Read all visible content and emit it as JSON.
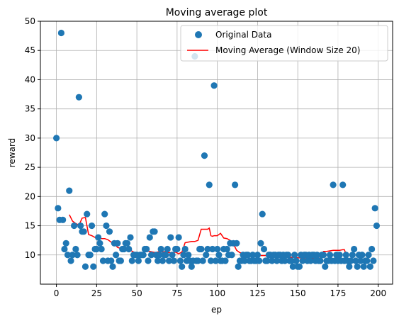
{
  "chart_data": {
    "type": "scatter",
    "title": "Moving average plot",
    "xlabel": "ep",
    "ylabel": "reward",
    "xlim": [
      -9.95,
      208.95
    ],
    "ylim": [
      5,
      50
    ],
    "x_ticks": [
      0,
      25,
      50,
      75,
      100,
      125,
      150,
      175,
      200
    ],
    "y_ticks": [
      10,
      15,
      20,
      25,
      30,
      35,
      40,
      45,
      50
    ],
    "grid": true,
    "legend_position": "top-right",
    "series": [
      {
        "name": "Original Data",
        "kind": "scatter",
        "color": "#1f77b4",
        "x": [
          0,
          1,
          2,
          3,
          4,
          5,
          6,
          7,
          8,
          9,
          10,
          11,
          12,
          13,
          14,
          15,
          16,
          17,
          18,
          19,
          20,
          21,
          22,
          23,
          24,
          25,
          26,
          27,
          28,
          29,
          30,
          31,
          32,
          33,
          34,
          35,
          36,
          37,
          38,
          39,
          40,
          41,
          42,
          43,
          44,
          45,
          46,
          47,
          48,
          49,
          50,
          51,
          52,
          53,
          54,
          55,
          56,
          57,
          58,
          59,
          60,
          61,
          62,
          63,
          64,
          65,
          66,
          67,
          68,
          69,
          70,
          71,
          72,
          73,
          74,
          75,
          76,
          77,
          78,
          79,
          80,
          81,
          82,
          83,
          84,
          85,
          86,
          87,
          88,
          89,
          90,
          91,
          92,
          93,
          94,
          95,
          96,
          97,
          98,
          99,
          100,
          101,
          102,
          103,
          104,
          105,
          106,
          107,
          108,
          109,
          110,
          111,
          112,
          113,
          114,
          115,
          116,
          117,
          118,
          119,
          120,
          121,
          122,
          123,
          124,
          125,
          126,
          127,
          128,
          129,
          130,
          131,
          132,
          133,
          134,
          135,
          136,
          137,
          138,
          139,
          140,
          141,
          142,
          143,
          144,
          145,
          146,
          147,
          148,
          149,
          150,
          151,
          152,
          153,
          154,
          155,
          156,
          157,
          158,
          159,
          160,
          161,
          162,
          163,
          164,
          165,
          166,
          167,
          168,
          169,
          170,
          171,
          172,
          173,
          174,
          175,
          176,
          177,
          178,
          179,
          180,
          181,
          182,
          183,
          184,
          185,
          186,
          187,
          188,
          189,
          190,
          191,
          192,
          193,
          194,
          195,
          196,
          197,
          198,
          199
        ],
        "y": [
          30,
          18,
          16,
          48,
          16,
          11,
          12,
          10,
          21,
          9,
          10,
          15,
          11,
          10,
          37,
          15,
          14,
          14,
          8,
          17,
          10,
          10,
          15,
          8,
          11,
          11,
          13,
          12,
          11,
          9,
          17,
          15,
          9,
          14,
          9,
          8,
          12,
          10,
          12,
          9,
          9,
          11,
          11,
          12,
          12,
          11,
          13,
          9,
          10,
          10,
          10,
          9,
          10,
          10,
          10,
          11,
          11,
          9,
          13,
          10,
          14,
          14,
          10,
          9,
          10,
          11,
          9,
          10,
          10,
          11,
          9,
          13,
          10,
          9,
          11,
          11,
          13,
          9,
          8,
          10,
          11,
          9,
          10,
          9,
          8,
          9,
          44,
          9,
          9,
          11,
          11,
          9,
          27,
          10,
          11,
          22,
          9,
          11,
          39,
          9,
          11,
          10,
          9,
          9,
          11,
          9,
          11,
          10,
          12,
          10,
          12,
          22,
          12,
          8,
          9,
          9,
          10,
          9,
          10,
          10,
          9,
          9,
          10,
          9,
          9,
          10,
          9,
          12,
          17,
          11,
          9,
          9,
          10,
          10,
          9,
          10,
          10,
          9,
          10,
          10,
          9,
          10,
          9,
          10,
          10,
          9,
          9,
          8,
          10,
          9,
          8,
          8,
          10,
          9,
          10,
          10,
          9,
          10,
          9,
          10,
          10,
          9,
          10,
          9,
          9,
          10,
          10,
          8,
          9,
          9,
          10,
          9,
          22,
          9,
          10,
          9,
          10,
          9,
          22,
          9,
          10,
          9,
          8,
          9,
          10,
          11,
          9,
          8,
          10,
          9,
          10,
          8,
          9,
          9,
          10,
          8,
          11,
          9,
          18,
          15
        ]
      },
      {
        "name": "Moving Average (Window Size 20)",
        "kind": "line",
        "color": "#ff0000",
        "x": [
          8,
          10,
          12,
          14,
          16,
          18,
          20,
          22,
          24,
          26,
          28,
          30,
          32,
          34,
          36,
          38,
          40,
          42,
          44,
          46,
          48,
          50,
          52,
          54,
          56,
          58,
          60,
          62,
          64,
          66,
          68,
          70,
          72,
          74,
          76,
          78,
          80,
          82,
          84,
          86,
          88,
          90,
          92,
          94,
          95,
          96,
          97,
          98,
          100,
          102,
          104,
          106,
          108,
          110,
          112,
          114,
          116,
          118,
          120,
          122,
          124,
          126,
          128,
          130,
          132,
          134,
          136,
          138,
          140,
          142,
          144,
          146,
          148,
          150,
          152,
          154,
          156,
          158,
          160,
          162,
          164,
          166,
          168,
          170,
          172,
          174,
          176,
          178,
          179,
          180
        ],
        "y": [
          16.9,
          15.8,
          15.4,
          15.1,
          16.3,
          16.4,
          13.5,
          13.3,
          13.0,
          12.9,
          12.8,
          12.8,
          12.6,
          12.2,
          11.9,
          11.3,
          11.1,
          11.2,
          10.9,
          10.8,
          10.5,
          10.3,
          10.3,
          10.4,
          10.6,
          10.6,
          10.5,
          10.4,
          10.6,
          10.5,
          10.6,
          10.4,
          10.4,
          10.5,
          10.2,
          10.5,
          12.1,
          12.2,
          12.3,
          12.3,
          12.5,
          14.4,
          14.4,
          14.4,
          14.6,
          13.3,
          13.2,
          13.3,
          13.3,
          13.7,
          12.9,
          12.8,
          12.5,
          11.9,
          10.8,
          10.4,
          10.3,
          10.0,
          9.9,
          9.9,
          9.8,
          9.9,
          9.9,
          9.9,
          9.9,
          9.8,
          9.8,
          9.8,
          9.8,
          9.8,
          9.6,
          9.6,
          9.6,
          9.5,
          9.5,
          9.5,
          9.5,
          9.4,
          9.4,
          9.4,
          9.5,
          10.6,
          10.6,
          10.7,
          10.8,
          10.8,
          10.8,
          10.9,
          10.9,
          10.1
        ]
      }
    ]
  }
}
